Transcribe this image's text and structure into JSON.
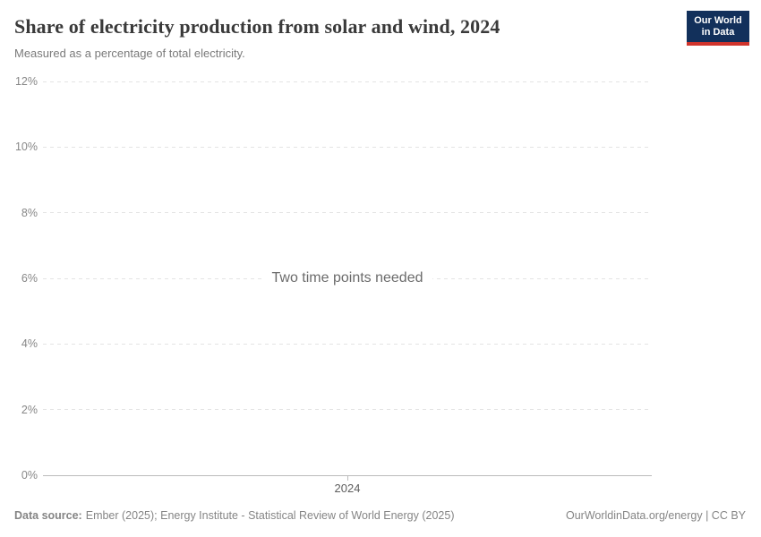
{
  "header": {
    "title": "Share of electricity production from solar and wind, 2024",
    "subtitle": "Measured as a percentage of total electricity.",
    "logo": {
      "line1": "Our World",
      "line2": "in Data",
      "bg_color": "#12305B",
      "stripe_color": "#D0342C",
      "text_color": "#FFFFFF"
    }
  },
  "chart_data": {
    "type": "line",
    "title": "Share of electricity production from solar and wind, 2024",
    "subtitle": "Measured as a percentage of total electricity.",
    "series": [],
    "empty_message": "Two time points needed",
    "xlabel": "",
    "ylabel": "",
    "ylim": [
      0,
      12
    ],
    "yticks": [
      {
        "label": "0%",
        "value": 0
      },
      {
        "label": "2%",
        "value": 2
      },
      {
        "label": "4%",
        "value": 4
      },
      {
        "label": "6%",
        "value": 6
      },
      {
        "label": "8%",
        "value": 8
      },
      {
        "label": "10%",
        "value": 10
      },
      {
        "label": "12%",
        "value": 12
      }
    ],
    "xticks": [
      {
        "label": "2024",
        "x": 0.5
      }
    ],
    "grid": "horizontal-dashed",
    "legend": "none"
  },
  "footer": {
    "source_label": "Data source:",
    "source_text": "Ember (2025); Energy Institute - Statistical Review of World Energy (2025)",
    "credit": "OurWorldinData.org/energy | CC BY"
  },
  "colors": {
    "title": "#3A3A3A",
    "subtitle": "#7A7A7A",
    "grid": "#E4E4E4",
    "axis": "#BCBCBC",
    "y_tick_label": "#878787",
    "x_tick_label": "#5E5E5E",
    "empty_message": "#6B6B6B",
    "footer": "#858585"
  }
}
